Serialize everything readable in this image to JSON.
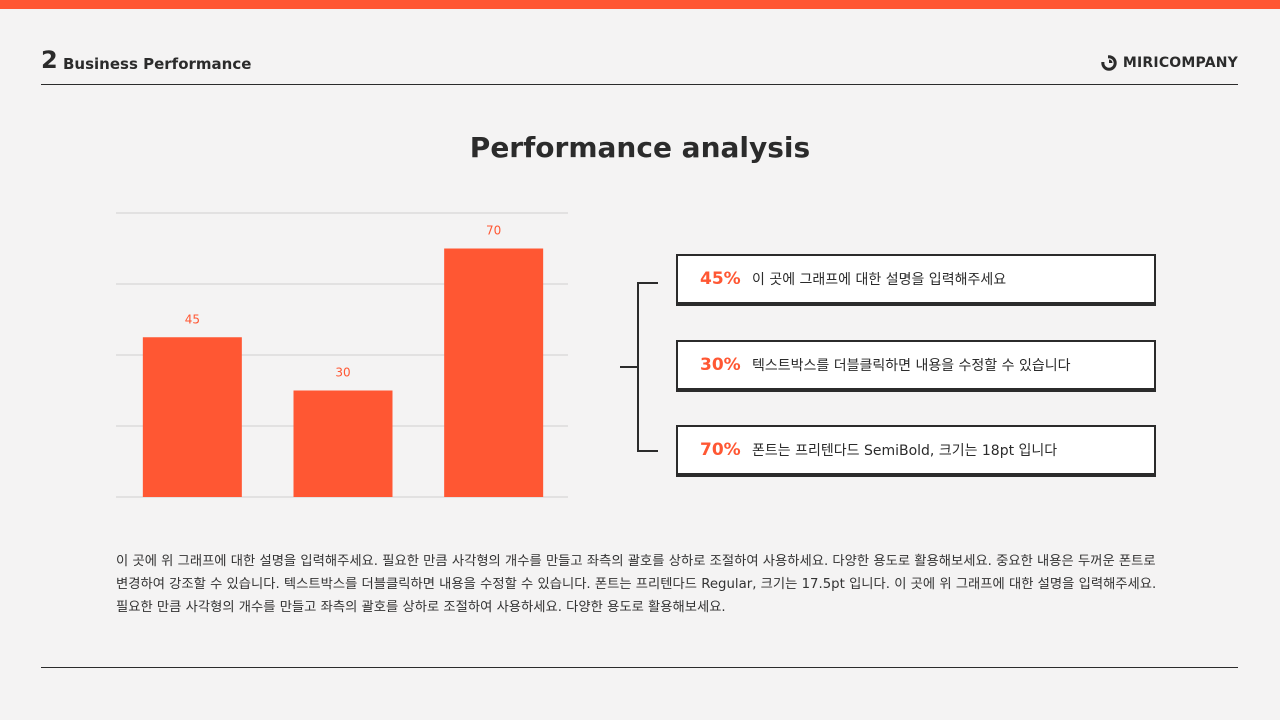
{
  "header": {
    "section_number": "2",
    "section_title": "Business Performance",
    "brand": "MIRICOMPANY"
  },
  "title": "Performance analysis",
  "colors": {
    "accent": "#ff5733",
    "text": "#2b2b2b",
    "grid": "#cfcfcf",
    "background": "#f4f3f3"
  },
  "chart_data": {
    "type": "bar",
    "categories": [
      "",
      "",
      ""
    ],
    "values": [
      45,
      30,
      70
    ],
    "data_labels": [
      "45",
      "30",
      "70"
    ],
    "ylim": [
      0,
      80
    ],
    "grid": true,
    "legend": "none"
  },
  "cards": [
    {
      "pct": "45%",
      "text": "이 곳에 그래프에 대한 설명을 입력해주세요"
    },
    {
      "pct": "30%",
      "text": "텍스트박스를 더블클릭하면 내용을 수정할 수 있습니다"
    },
    {
      "pct": "70%",
      "text": "폰트는 프리텐다드 SemiBold, 크기는 18pt 입니다"
    }
  ],
  "description": "이 곳에 위 그래프에 대한 설명을 입력해주세요. 필요한 만큼 사각형의 개수를 만들고 좌측의 괄호를 상하로 조절하여 사용하세요. 다양한 용도로 활용해보세요. 중요한 내용은 두꺼운 폰트로 변경하여 강조할 수 있습니다. 텍스트박스를 더블클릭하면 내용을 수정할 수 있습니다. 폰트는 프리텐다드 Regular, 크기는 17.5pt 입니다. 이 곳에 위 그래프에 대한 설명을 입력해주세요. 필요한 만큼 사각형의 개수를 만들고 좌측의 괄호를 상하로 조절하여 사용하세요. 다양한 용도로 활용해보세요."
}
